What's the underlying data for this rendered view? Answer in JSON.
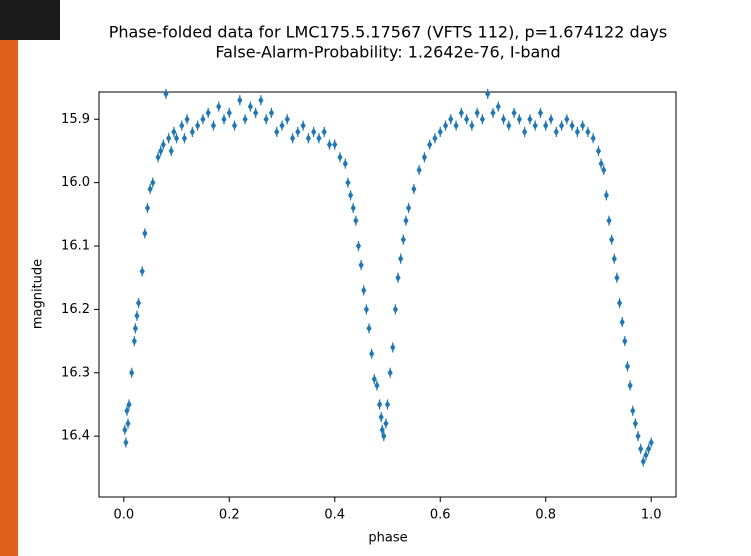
{
  "chart_data": {
    "type": "scatter",
    "title": "Phase-folded data for LMC175.5.17567 (VFTS 112), p=1.674122 days",
    "subtitle": "False-Alarm-Probability: 1.2642e-76, I-band",
    "x_label": "phase",
    "y_label": "magnitude",
    "color": "#1f77b4",
    "yerr": 0.008,
    "xlim": [
      -0.047,
      1.047
    ],
    "ylim": [
      16.496,
      15.857
    ],
    "xticks": [
      {
        "value": 0,
        "label": "0.0"
      },
      0.2,
      0.4,
      0.6,
      0.8,
      {
        "value": 1,
        "label": "1.0"
      }
    ],
    "yticks": [
      15.9,
      {
        "value": 16,
        "label": "16.0"
      },
      16.1,
      16.2,
      16.3,
      16.4
    ],
    "x": [
      0.002,
      0.004,
      0.006,
      0.008,
      0.01,
      0.015,
      0.02,
      0.022,
      0.025,
      0.028,
      0.035,
      0.04,
      0.045,
      0.05,
      0.055,
      0.065,
      0.07,
      0.075,
      0.08,
      0.085,
      0.09,
      0.095,
      0.1,
      0.11,
      0.115,
      0.12,
      0.13,
      0.14,
      0.15,
      0.16,
      0.17,
      0.18,
      0.19,
      0.2,
      0.21,
      0.22,
      0.23,
      0.24,
      0.25,
      0.26,
      0.27,
      0.28,
      0.29,
      0.3,
      0.31,
      0.32,
      0.33,
      0.34,
      0.35,
      0.36,
      0.37,
      0.38,
      0.39,
      0.4,
      0.41,
      0.42,
      0.425,
      0.43,
      0.435,
      0.44,
      0.445,
      0.45,
      0.455,
      0.46,
      0.465,
      0.47,
      0.475,
      0.48,
      0.485,
      0.488,
      0.49,
      0.493,
      0.497,
      0.5,
      0.505,
      0.51,
      0.515,
      0.52,
      0.525,
      0.53,
      0.535,
      0.54,
      0.55,
      0.56,
      0.57,
      0.58,
      0.59,
      0.6,
      0.61,
      0.62,
      0.63,
      0.64,
      0.65,
      0.66,
      0.67,
      0.68,
      0.69,
      0.7,
      0.71,
      0.72,
      0.73,
      0.74,
      0.75,
      0.76,
      0.77,
      0.78,
      0.79,
      0.8,
      0.81,
      0.82,
      0.83,
      0.84,
      0.85,
      0.86,
      0.87,
      0.88,
      0.89,
      0.9,
      0.905,
      0.91,
      0.915,
      0.92,
      0.925,
      0.93,
      0.935,
      0.94,
      0.945,
      0.95,
      0.955,
      0.96,
      0.965,
      0.97,
      0.975,
      0.98,
      0.985,
      0.99,
      0.995,
      1.0
    ],
    "values": [
      16.39,
      16.41,
      16.36,
      16.38,
      16.35,
      16.3,
      16.25,
      16.23,
      16.21,
      16.19,
      16.14,
      16.08,
      16.04,
      16.01,
      16.0,
      15.96,
      15.95,
      15.94,
      15.86,
      15.93,
      15.95,
      15.92,
      15.93,
      15.91,
      15.93,
      15.9,
      15.92,
      15.91,
      15.9,
      15.89,
      15.91,
      15.88,
      15.9,
      15.89,
      15.91,
      15.87,
      15.9,
      15.88,
      15.89,
      15.87,
      15.9,
      15.89,
      15.92,
      15.91,
      15.9,
      15.93,
      15.92,
      15.91,
      15.93,
      15.92,
      15.93,
      15.92,
      15.94,
      15.94,
      15.96,
      15.97,
      16.0,
      16.02,
      16.04,
      16.06,
      16.1,
      16.13,
      16.17,
      16.2,
      16.23,
      16.27,
      16.31,
      16.32,
      16.35,
      16.37,
      16.39,
      16.4,
      16.38,
      16.35,
      16.3,
      16.26,
      16.2,
      16.15,
      16.12,
      16.09,
      16.06,
      16.04,
      16.01,
      15.98,
      15.96,
      15.94,
      15.93,
      15.92,
      15.91,
      15.9,
      15.91,
      15.89,
      15.9,
      15.91,
      15.89,
      15.9,
      15.86,
      15.89,
      15.88,
      15.9,
      15.91,
      15.89,
      15.9,
      15.92,
      15.9,
      15.91,
      15.89,
      15.91,
      15.9,
      15.92,
      15.91,
      15.9,
      15.91,
      15.92,
      15.91,
      15.92,
      15.93,
      15.95,
      15.97,
      15.98,
      16.02,
      16.06,
      16.09,
      16.12,
      16.15,
      16.19,
      16.22,
      16.25,
      16.29,
      16.32,
      16.36,
      16.38,
      16.4,
      16.42,
      16.44,
      16.43,
      16.42,
      16.41
    ]
  }
}
